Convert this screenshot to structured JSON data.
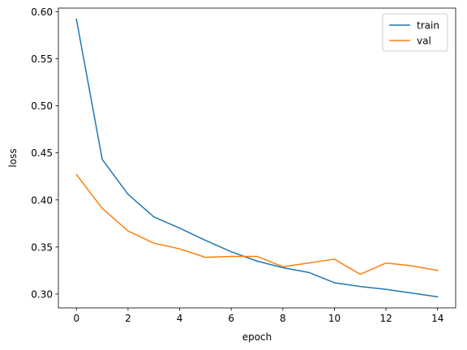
{
  "chart_data": {
    "type": "line",
    "x": [
      0,
      1,
      2,
      3,
      4,
      5,
      6,
      7,
      8,
      9,
      10,
      11,
      12,
      13,
      14
    ],
    "series": [
      {
        "name": "train",
        "color": "#1f77b4",
        "values": [
          0.592,
          0.443,
          0.406,
          0.382,
          0.37,
          0.357,
          0.345,
          0.335,
          0.328,
          0.323,
          0.312,
          0.308,
          0.305,
          0.301,
          0.297
        ]
      },
      {
        "name": "val",
        "color": "#ff7f0e",
        "values": [
          0.427,
          0.391,
          0.367,
          0.354,
          0.348,
          0.339,
          0.34,
          0.34,
          0.329,
          0.333,
          0.337,
          0.321,
          0.333,
          0.33,
          0.325
        ]
      }
    ],
    "xlabel": "epoch",
    "ylabel": "loss",
    "xlim": [
      -0.7,
      14.7
    ],
    "ylim": [
      0.2853,
      0.6038
    ],
    "xticks": [
      0,
      2,
      4,
      6,
      8,
      10,
      12,
      14
    ],
    "yticks": [
      0.3,
      0.35,
      0.4,
      0.45,
      0.5,
      0.55,
      0.6
    ],
    "grid": false,
    "legend_position": "top-right"
  }
}
